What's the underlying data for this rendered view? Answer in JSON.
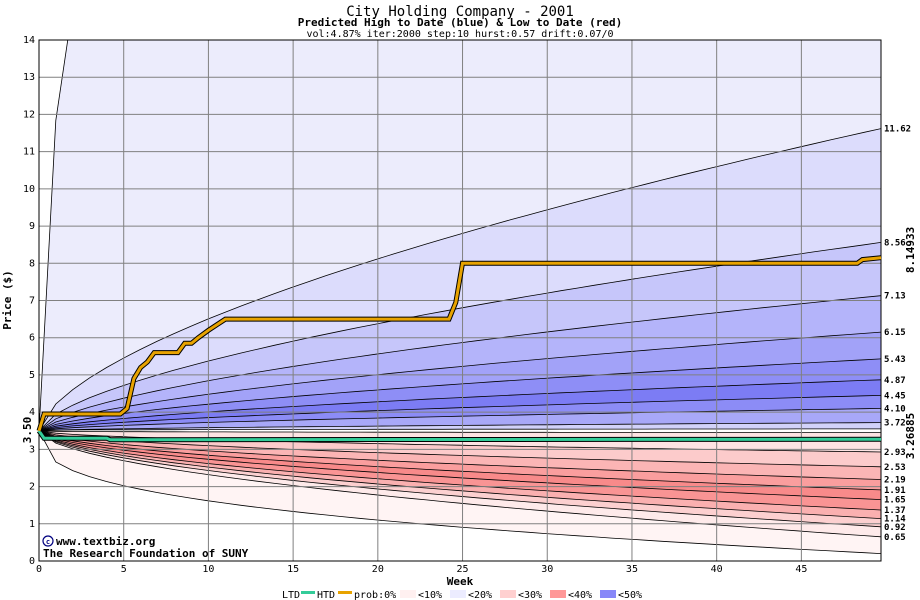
{
  "chart_data": {
    "type": "area",
    "title": "City Holding Company - 2001",
    "subtitle": "Predicted High to Date (blue) &  Low to Date (red)",
    "params": "vol:4.87% iter:2000 step:10 hurst:0.57 drift:0.07/0",
    "xlabel": "Week",
    "ylabel": "Price ($)",
    "xlim": [
      0,
      49.7
    ],
    "ylim": [
      0,
      14
    ],
    "x_ticks": [
      0,
      5,
      10,
      15,
      20,
      25,
      30,
      35,
      40,
      45
    ],
    "y_ticks": [
      0,
      1,
      2,
      3,
      4,
      5,
      6,
      7,
      8,
      9,
      10,
      11,
      12,
      13,
      14
    ],
    "grid": true,
    "start_price": 3.5,
    "start_label": "3.50",
    "high_to_date_last": "8.14933",
    "low_to_date_last": "3.26885",
    "blue_percentiles_end": [
      {
        "label": "11.62",
        "value": 11.62
      },
      {
        "label": "8.56",
        "value": 8.56
      },
      {
        "label": "7.13",
        "value": 7.13
      },
      {
        "label": "6.15",
        "value": 6.15
      },
      {
        "label": "5.43",
        "value": 5.43
      },
      {
        "label": "4.87",
        "value": 4.87
      },
      {
        "label": "4.45",
        "value": 4.45
      },
      {
        "label": "4.10",
        "value": 4.1
      },
      {
        "label": "3.72",
        "value": 3.72
      }
    ],
    "red_percentiles_end": [
      {
        "label": "2.93",
        "value": 2.93
      },
      {
        "label": "2.53",
        "value": 2.53
      },
      {
        "label": "2.19",
        "value": 2.19
      },
      {
        "label": "1.91",
        "value": 1.91
      },
      {
        "label": "1.65",
        "value": 1.65
      },
      {
        "label": "1.37",
        "value": 1.37
      },
      {
        "label": "1.14",
        "value": 1.14
      },
      {
        "label": "0.92",
        "value": 0.92
      },
      {
        "label": "0.65",
        "value": 0.65
      }
    ],
    "high_to_date_series": {
      "x": [
        0,
        0.3,
        4.8,
        5.2,
        5.6,
        6.0,
        6.4,
        6.8,
        8.2,
        8.6,
        9.0,
        9.4,
        10.0,
        10.5,
        11.0,
        24.2,
        24.6,
        25.0,
        48.3,
        48.6,
        49.7
      ],
      "y": [
        3.5,
        3.95,
        3.95,
        4.1,
        4.9,
        5.2,
        5.35,
        5.6,
        5.6,
        5.85,
        5.85,
        6.0,
        6.2,
        6.35,
        6.5,
        6.5,
        6.95,
        8.0,
        8.0,
        8.1,
        8.15
      ]
    },
    "low_to_date_series": {
      "x": [
        0,
        0.3,
        4.0,
        4.2,
        49.7
      ],
      "y": [
        3.5,
        3.3,
        3.3,
        3.26,
        3.27
      ]
    }
  },
  "watermark": {
    "line1": "www.textbiz.org",
    "line2": "The Research Foundation of SUNY"
  },
  "legend": {
    "ltd": "LTD",
    "htd": "HTD",
    "prob": "prob:0%",
    "b10": "<10%",
    "b20": "<20%",
    "b30": "<30%",
    "b40": "<40%",
    "b50": "<50%",
    "colors": {
      "ltd": "#33cc99",
      "htd": "#e8a300",
      "b10": "#fff0f0",
      "b20": "#ececff",
      "b30": "#ffd0d0",
      "b40": "#ff9898",
      "b50": "#8888f8"
    }
  },
  "colors": {
    "blue_bands": [
      "#ececfc",
      "#dcdcfc",
      "#c6c6fa",
      "#b4b4fa",
      "#a2a2f8",
      "#8e8ef6",
      "#7c7cf4",
      "#8c8cf6",
      "#a8a8f8",
      "#d2d2fa"
    ],
    "red_bands": [
      "#fde3e3",
      "#fccbcb",
      "#fbb5b5",
      "#fa9e9e",
      "#f88a8a",
      "#f99494",
      "#fab0b0",
      "#fcd0d0",
      "#feeaea",
      "#fff4f4"
    ],
    "grid": "#808080",
    "htd_line": "#e8a300",
    "ltd_line": "#33cc99",
    "watermark": "#000080"
  }
}
